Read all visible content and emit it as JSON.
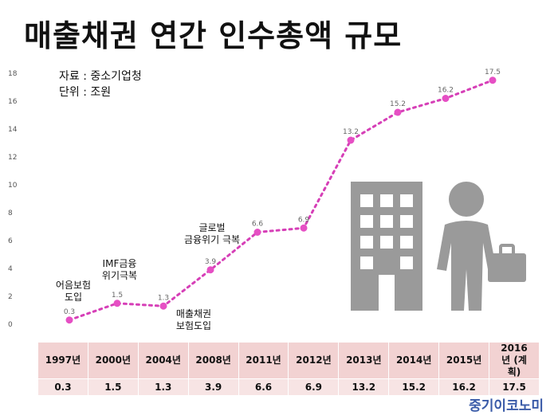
{
  "title": "매출채권 연간 인수총액 규모",
  "source_note": "자료 : 중소기업청",
  "unit_note": "단위 : 조원",
  "brand": "중기이코노미",
  "annotations": {
    "a1997": [
      "어음보험",
      "도입"
    ],
    "a2000": [
      "IMF금융",
      "위기극복"
    ],
    "a2004": [
      "매출채권",
      "보험도입"
    ],
    "a2008": [
      "글로벌",
      "금융위기 극복"
    ]
  },
  "table": {
    "headers": [
      "1997년",
      "2000년",
      "2004년",
      "2008년",
      "2011년",
      "2012년",
      "2013년",
      "2014년",
      "2015년",
      "2016년 (계획)"
    ],
    "values": [
      "0.3",
      "1.5",
      "1.3",
      "3.9",
      "6.6",
      "6.9",
      "13.2",
      "15.2",
      "16.2",
      "17.5"
    ]
  },
  "chart_data": {
    "type": "line",
    "categories": [
      "1997년",
      "2000년",
      "2004년",
      "2008년",
      "2011년",
      "2012년",
      "2013년",
      "2014년",
      "2015년",
      "2016년(계획)"
    ],
    "values": [
      0.3,
      1.5,
      1.3,
      3.9,
      6.6,
      6.9,
      13.2,
      15.2,
      16.2,
      17.5
    ],
    "data_labels": [
      "0.3",
      "1.5",
      "1.3",
      "3.9",
      "6.6",
      "6.9",
      "13.2",
      "15.2",
      "16.2",
      "17.5"
    ],
    "y_ticks": [
      "0",
      "2",
      "4",
      "6",
      "8",
      "10",
      "12",
      "14",
      "16",
      "18"
    ],
    "ylim": [
      0,
      18
    ],
    "grid": false,
    "line_color": "#d63fb7",
    "marker_color": "#e64fc4"
  }
}
